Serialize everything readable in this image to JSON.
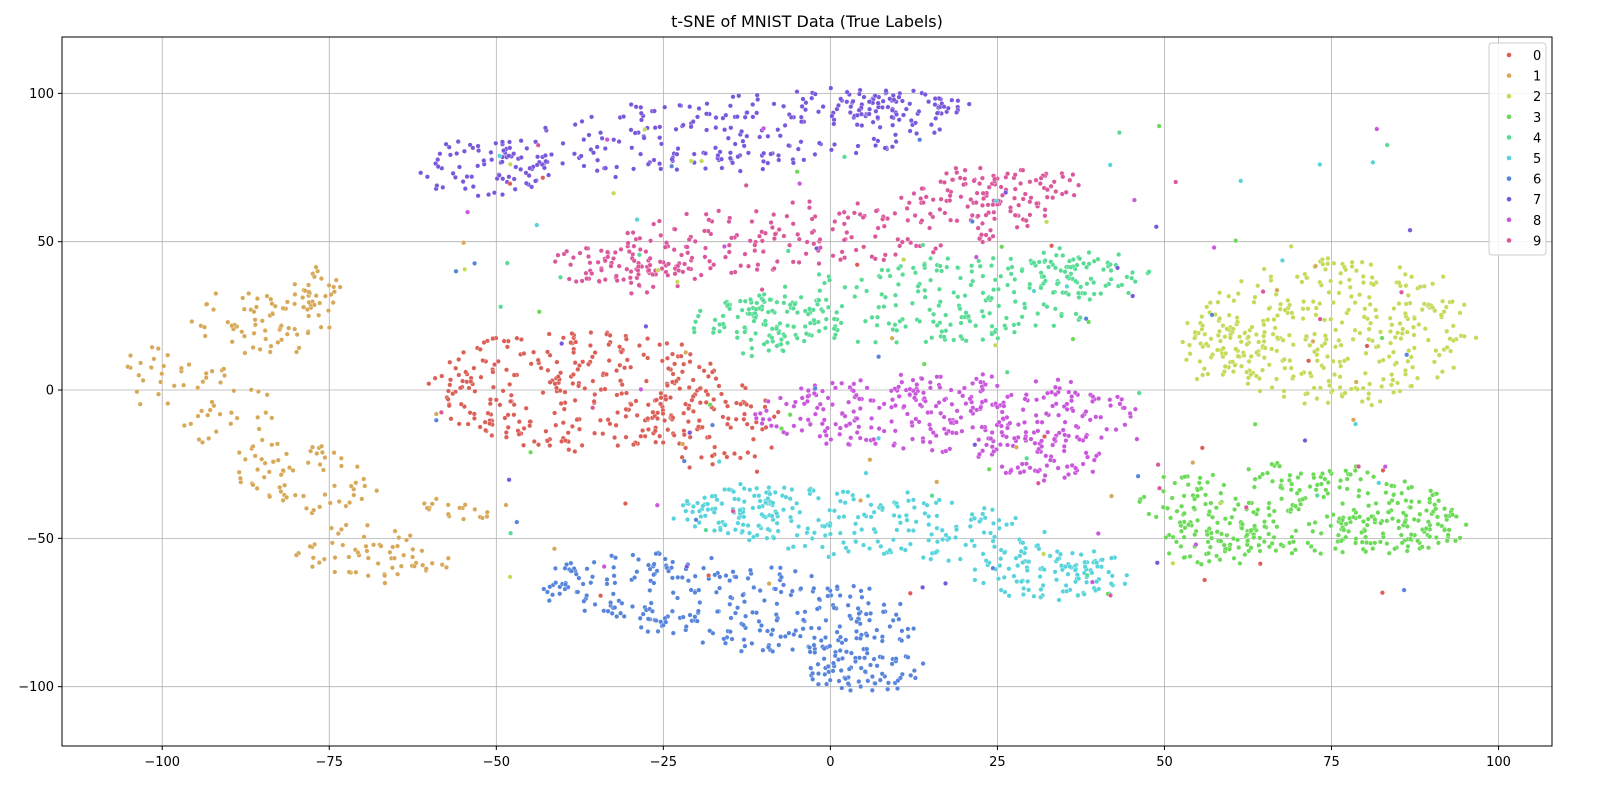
{
  "chart_data": {
    "type": "scatter",
    "title": "t-SNE of MNIST Data (True Labels)",
    "xlabel": "",
    "ylabel": "",
    "xlim": [
      -115,
      108
    ],
    "ylim": [
      -120,
      119
    ],
    "xticks": [
      -100,
      -75,
      -50,
      -25,
      0,
      25,
      50,
      75,
      100
    ],
    "xtick_labels": [
      "−100",
      "−75",
      "−50",
      "−25",
      "0",
      "25",
      "50",
      "75",
      "100"
    ],
    "yticks": [
      -100,
      -50,
      0,
      50,
      100
    ],
    "ytick_labels": [
      "−100",
      "−50",
      "0",
      "50",
      "100"
    ],
    "grid": true,
    "legend_position": "top-right",
    "series": [
      {
        "name": "0",
        "color": "#db5f57",
        "n": 380,
        "regions": [
          {
            "cx": -37,
            "cy": 0,
            "rx": 24,
            "ry": 20,
            "rot": -8,
            "w": 4
          },
          {
            "cx": -18,
            "cy": -10,
            "rx": 10,
            "ry": 16,
            "rot": 10,
            "w": 1
          }
        ]
      },
      {
        "name": "1",
        "color": "#d7a857",
        "n": 300,
        "regions": [
          {
            "cx": -93,
            "cy": -5,
            "rx": 9,
            "ry": 22,
            "rot": 25,
            "w": 2
          },
          {
            "cx": -85,
            "cy": 22,
            "rx": 10,
            "ry": 12,
            "rot": 30,
            "w": 2
          },
          {
            "cx": -77,
            "cy": 33,
            "rx": 4,
            "ry": 8,
            "rot": 0,
            "w": 1
          },
          {
            "cx": -78,
            "cy": -30,
            "rx": 10,
            "ry": 12,
            "rot": 20,
            "w": 2
          },
          {
            "cx": -68,
            "cy": -55,
            "rx": 12,
            "ry": 9,
            "rot": -20,
            "w": 2
          },
          {
            "cx": -55,
            "cy": -40,
            "rx": 7,
            "ry": 3,
            "rot": -10,
            "w": 0.6
          }
        ]
      },
      {
        "name": "2",
        "color": "#c3db57",
        "n": 380,
        "regions": [
          {
            "cx": 76,
            "cy": 20,
            "rx": 21,
            "ry": 25,
            "rot": 0,
            "w": 4
          },
          {
            "cx": 60,
            "cy": 15,
            "rx": 8,
            "ry": 12,
            "rot": 0,
            "w": 1
          }
        ]
      },
      {
        "name": "3",
        "color": "#6bdb57",
        "n": 380,
        "regions": [
          {
            "cx": 70,
            "cy": -40,
            "rx": 24,
            "ry": 15,
            "rot": -5,
            "w": 4
          },
          {
            "cx": 85,
            "cy": -45,
            "rx": 10,
            "ry": 12,
            "rot": 0,
            "w": 1.5
          },
          {
            "cx": 58,
            "cy": -50,
            "rx": 8,
            "ry": 10,
            "rot": 0,
            "w": 1
          }
        ]
      },
      {
        "name": "4",
        "color": "#57db95",
        "n": 380,
        "regions": [
          {
            "cx": 15,
            "cy": 30,
            "rx": 30,
            "ry": 14,
            "rot": 10,
            "w": 4
          },
          {
            "cx": -10,
            "cy": 22,
            "rx": 12,
            "ry": 10,
            "rot": 0,
            "w": 1.5
          },
          {
            "cx": 38,
            "cy": 40,
            "rx": 10,
            "ry": 8,
            "rot": 0,
            "w": 1
          }
        ]
      },
      {
        "name": "5",
        "color": "#57d3db",
        "n": 380,
        "regions": [
          {
            "cx": 5,
            "cy": -45,
            "rx": 28,
            "ry": 11,
            "rot": -12,
            "w": 4
          },
          {
            "cx": 33,
            "cy": -62,
            "rx": 12,
            "ry": 9,
            "rot": -10,
            "w": 2
          },
          {
            "cx": -15,
            "cy": -40,
            "rx": 8,
            "ry": 8,
            "rot": 0,
            "w": 1
          }
        ]
      },
      {
        "name": "6",
        "color": "#5784db",
        "n": 380,
        "regions": [
          {
            "cx": -15,
            "cy": -72,
            "rx": 30,
            "ry": 14,
            "rot": -20,
            "w": 4
          },
          {
            "cx": 5,
            "cy": -95,
            "rx": 9,
            "ry": 7,
            "rot": 0,
            "w": 1
          }
        ]
      },
      {
        "name": "7",
        "color": "#7957db",
        "n": 380,
        "regions": [
          {
            "cx": -15,
            "cy": 87,
            "rx": 35,
            "ry": 13,
            "rot": 12,
            "w": 4
          },
          {
            "cx": -52,
            "cy": 75,
            "rx": 10,
            "ry": 10,
            "rot": 0,
            "w": 1.2
          },
          {
            "cx": 10,
            "cy": 96,
            "rx": 10,
            "ry": 5,
            "rot": 0,
            "w": 1
          }
        ]
      },
      {
        "name": "8",
        "color": "#c957db",
        "n": 380,
        "regions": [
          {
            "cx": 17,
            "cy": -8,
            "rx": 30,
            "ry": 13,
            "rot": 0,
            "w": 4
          },
          {
            "cx": 32,
            "cy": -20,
            "rx": 10,
            "ry": 10,
            "rot": 0,
            "w": 1
          }
        ]
      },
      {
        "name": "9",
        "color": "#db579b",
        "n": 380,
        "regions": [
          {
            "cx": -5,
            "cy": 52,
            "rx": 38,
            "ry": 11,
            "rot": 12,
            "w": 4
          },
          {
            "cx": 25,
            "cy": 68,
            "rx": 14,
            "ry": 7,
            "rot": 0,
            "w": 1.5
          },
          {
            "cx": -30,
            "cy": 40,
            "rx": 10,
            "ry": 7,
            "rot": 0,
            "w": 1
          }
        ]
      }
    ]
  }
}
